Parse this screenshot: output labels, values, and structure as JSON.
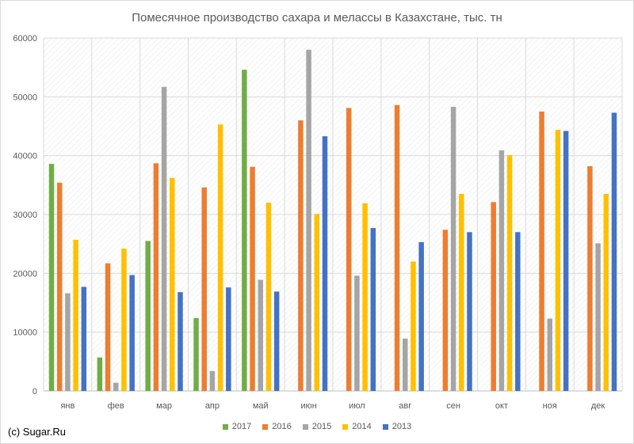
{
  "chart_data": {
    "type": "bar",
    "title": "Помесячное производство сахара и мелассы в Казахстане, тыс. тн",
    "xlabel": "",
    "ylabel": "",
    "ylim": [
      0,
      60000
    ],
    "yticks": [
      "0",
      "10000",
      "20000",
      "30000",
      "40000",
      "50000",
      "60000"
    ],
    "grid": true,
    "legend_position": "bottom",
    "categories": [
      "янв",
      "фев",
      "мар",
      "апр",
      "май",
      "июн",
      "июл",
      "авг",
      "сен",
      "окт",
      "ноя",
      "дек"
    ],
    "series": [
      {
        "name": "2017",
        "color": "#70ad47",
        "values": [
          38600,
          5700,
          25500,
          12400,
          54600,
          null,
          null,
          null,
          null,
          null,
          null,
          null
        ]
      },
      {
        "name": "2016",
        "color": "#ed7d31",
        "values": [
          35400,
          21700,
          38700,
          34600,
          38100,
          46000,
          48100,
          48600,
          27400,
          32100,
          47500,
          38200
        ]
      },
      {
        "name": "2015",
        "color": "#a5a5a5",
        "values": [
          16600,
          1400,
          51700,
          3400,
          18900,
          58000,
          19600,
          8900,
          48300,
          40900,
          12300,
          25100
        ]
      },
      {
        "name": "2014",
        "color": "#ffc000",
        "values": [
          25700,
          24200,
          36200,
          45300,
          32000,
          30100,
          31900,
          22000,
          33500,
          40100,
          44400,
          33500
        ]
      },
      {
        "name": "2013",
        "color": "#4472c4",
        "values": [
          17700,
          19700,
          16800,
          17600,
          16900,
          43300,
          27700,
          25300,
          27000,
          27000,
          44200,
          47300
        ]
      }
    ]
  },
  "credit": "(c) Sugar.Ru"
}
